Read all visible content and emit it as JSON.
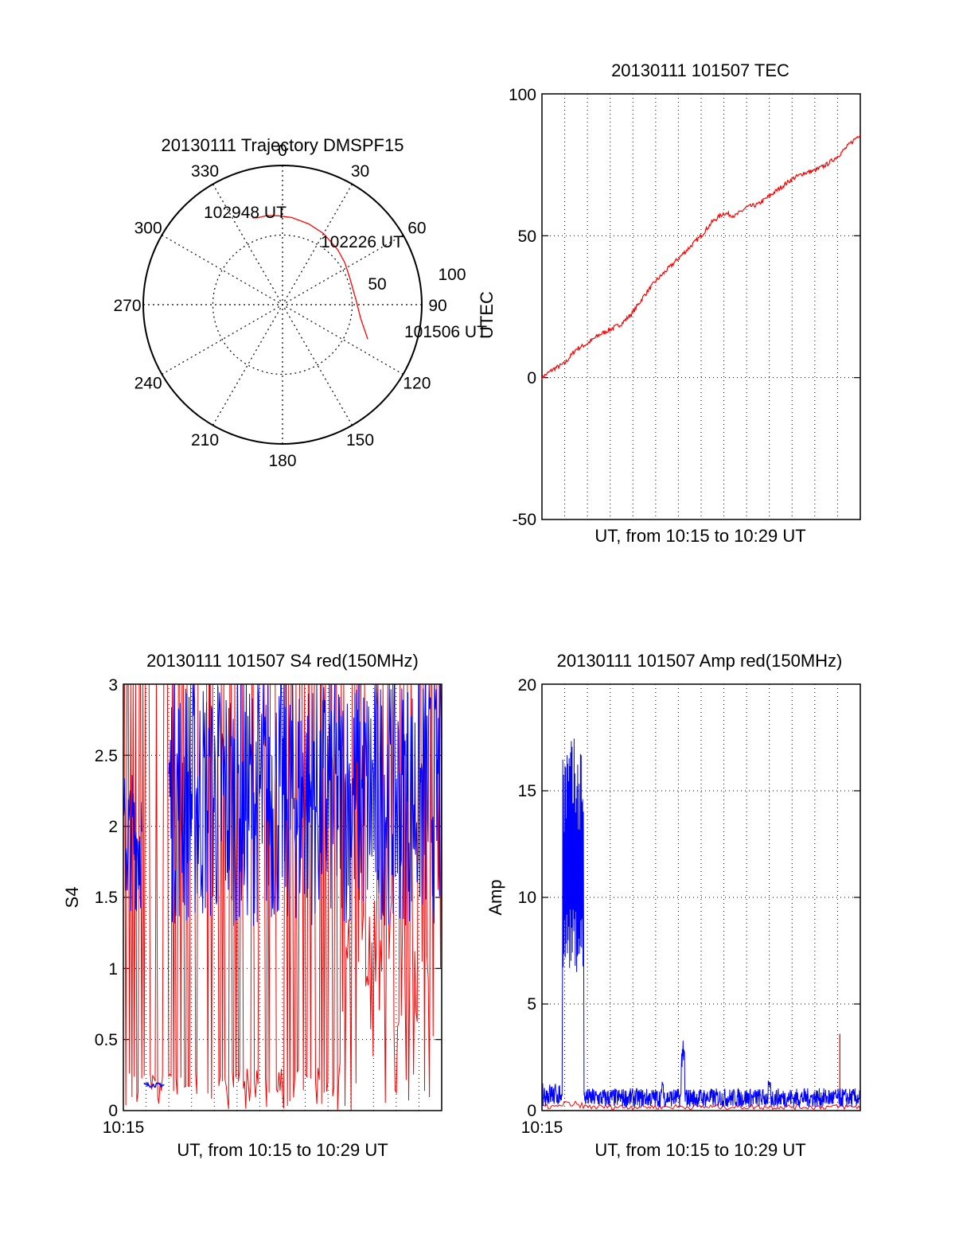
{
  "chart_data": [
    {
      "type": "polar",
      "title": "20130111 Trajectory DMSPF15",
      "angle_ticks": [
        "0",
        "30",
        "60",
        "90",
        "120",
        "150",
        "180",
        "210",
        "240",
        "270",
        "300",
        "330"
      ],
      "radial_ticks": [
        "50",
        "100"
      ],
      "radial_range": [
        0,
        100
      ],
      "series": [
        {
          "color": "#ff0000",
          "points": [
            [
              112,
              66
            ],
            [
              100,
              57
            ],
            [
              87,
              53
            ],
            [
              68,
              52
            ],
            [
              56,
              54
            ],
            [
              45,
              56
            ],
            [
              30,
              59
            ],
            [
              18,
              61
            ],
            [
              6,
              63
            ],
            [
              -3,
              64
            ],
            [
              -10,
              65
            ],
            [
              -16,
              65
            ],
            [
              -19,
              66
            ]
          ]
        }
      ],
      "annotations": [
        {
          "text": "101506 UT",
          "az": 112,
          "r": 66
        },
        {
          "text": "102226 UT",
          "az": 45,
          "r": 56
        },
        {
          "text": "102948 UT",
          "az": -19,
          "r": 66
        }
      ]
    },
    {
      "type": "line",
      "title": "20130111 101507 TEC",
      "ylabel": "UTEC",
      "xlabel": "UT, from 10:15 to 10:29 UT",
      "ylim": [
        -50,
        100
      ],
      "yticks": [
        "-50",
        "0",
        "50",
        "100"
      ],
      "xlim": [
        0,
        14
      ],
      "grid": true,
      "series": [
        {
          "color": "#ff0000",
          "x": [
            0,
            0.5,
            1,
            1.5,
            2,
            2.5,
            3,
            3.5,
            4,
            4.5,
            5,
            5.5,
            6,
            6.5,
            7,
            7.5,
            8,
            8.5,
            9,
            9.5,
            10,
            10.5,
            11,
            11.5,
            12,
            12.5,
            13,
            13.5,
            14
          ],
          "y": [
            0,
            3,
            5,
            10,
            12,
            15,
            17,
            19,
            23,
            29,
            34,
            38,
            42,
            46,
            50,
            55,
            58,
            57,
            60,
            61,
            64,
            67,
            70,
            72,
            73,
            75,
            78,
            82,
            86
          ]
        }
      ]
    },
    {
      "type": "line",
      "title": "20130111 101507 S4 red(150MHz)",
      "ylabel": "S4",
      "xlabel": "UT, from 10:15 to 10:29 UT",
      "xtick_first": "10:15",
      "ylim": [
        0,
        3
      ],
      "yticks": [
        "0",
        "0.5",
        "1",
        "1.5",
        "2",
        "2.5",
        "3"
      ],
      "xlim": [
        0,
        14
      ],
      "grid": true,
      "series": [
        {
          "name": "",
          "color": "#ff0000",
          "note_values": "noisy spikes between 0 and 3 across full range"
        },
        {
          "name": "",
          "color": "#0000ff",
          "values_summary": {
            "early_low_segment": {
              "x": [
                0.8,
                1.8
              ],
              "y": 0.18
            },
            "mean_level": 2.0,
            "range": [
              1.2,
              3.0
            ]
          }
        }
      ]
    },
    {
      "type": "line",
      "title": "20130111 101507 Amp red(150MHz)",
      "ylabel": "Amp",
      "xlabel": "UT, from 10:15 to 10:29 UT",
      "xtick_first": "10:15",
      "ylim": [
        0,
        20
      ],
      "yticks": [
        "0",
        "5",
        "10",
        "15",
        "20"
      ],
      "xlim": [
        0,
        14
      ],
      "grid": true,
      "series": [
        {
          "name": "",
          "color": "#0000ff",
          "values_summary": {
            "burst": {
              "x": [
                0.9,
                1.85
              ],
              "peak": 17.5,
              "low": 6.5
            },
            "baseline": 0.6,
            "spikes": [
              {
                "x": 6.2,
                "y": 3.3
              },
              {
                "x": 10,
                "y": 1.3
              }
            ]
          }
        },
        {
          "name": "",
          "color": "#ff0000",
          "values_summary": {
            "baseline": 0.1,
            "spikes": [
              {
                "x": 13.1,
                "y": 3.6
              }
            ]
          }
        }
      ]
    }
  ]
}
